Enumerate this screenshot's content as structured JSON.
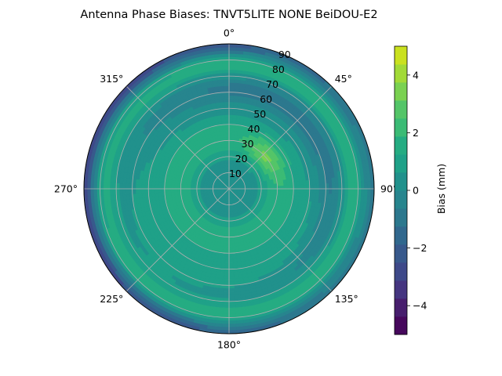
{
  "chart_data": {
    "type": "polar-contour",
    "title": "Antenna Phase Biases: TNVT5LITE       NONE BeiDOU-E2",
    "theta_labels": [
      {
        "deg": 0,
        "label": "0°"
      },
      {
        "deg": 45,
        "label": "45°"
      },
      {
        "deg": 90,
        "label": "90°"
      },
      {
        "deg": 135,
        "label": "135°"
      },
      {
        "deg": 180,
        "label": "180°"
      },
      {
        "deg": 225,
        "label": "225°"
      },
      {
        "deg": 270,
        "label": "270°"
      },
      {
        "deg": 315,
        "label": "315°"
      }
    ],
    "theta_direction": "clockwise",
    "theta_zero": "north",
    "radial_ticks": [
      10,
      20,
      30,
      40,
      50,
      60,
      70,
      80,
      90
    ],
    "radial_range": [
      0,
      90
    ],
    "grid": true,
    "colorbar": {
      "label": "Bias (mm)",
      "range": [
        -5,
        5
      ],
      "ticks": [
        -4,
        -2,
        0,
        2,
        4
      ],
      "levels": [
        -5,
        -4.375,
        -3.75,
        -3.125,
        -2.5,
        -1.875,
        -1.25,
        -0.625,
        0,
        0.625,
        1.25,
        1.875,
        2.5,
        3.125,
        3.75,
        4.375,
        5
      ],
      "colors": [
        "#46085c",
        "#471e6d",
        "#453580",
        "#3e4989",
        "#38598c",
        "#31688e",
        "#2c788e",
        "#27858e",
        "#21918c",
        "#1fa188",
        "#25ac82",
        "#3bbb75",
        "#54c568",
        "#7ad151",
        "#a2da37",
        "#cae11f",
        "#e4e419"
      ]
    },
    "field": {
      "description_values": "bias in mm vs azimuth/elevation-from-zenith",
      "bias_samples": [
        {
          "r": 0,
          "bias": 0.2
        },
        {
          "r": 20,
          "bias": 0.8
        },
        {
          "r": 30,
          "bias": 1.6
        },
        {
          "r": 45,
          "bias": 1.5
        },
        {
          "r": 60,
          "bias": -0.3
        },
        {
          "r": 75,
          "bias": 0.8
        },
        {
          "r": 85,
          "bias": -1.5
        }
      ]
    }
  }
}
